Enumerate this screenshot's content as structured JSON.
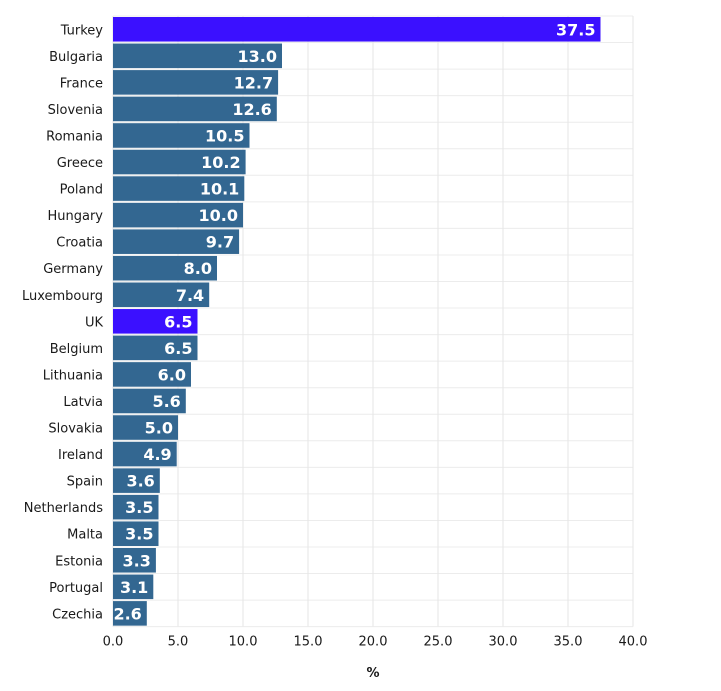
{
  "chart_data": {
    "type": "bar",
    "orientation": "horizontal",
    "title": "",
    "xlabel": "%",
    "ylabel": "",
    "xlim": [
      0,
      40
    ],
    "x_ticks": [
      "0.0",
      "5.0",
      "10.0",
      "15.0",
      "20.0",
      "25.0",
      "30.0",
      "35.0",
      "40.0"
    ],
    "grid": true,
    "categories": [
      "Turkey",
      "Bulgaria",
      "France",
      "Slovenia",
      "Romania",
      "Greece",
      "Poland",
      "Hungary",
      "Croatia",
      "Germany",
      "Luxembourg",
      "UK",
      "Belgium",
      "Lithuania",
      "Latvia",
      "Slovakia",
      "Ireland",
      "Spain",
      "Netherlands",
      "Malta",
      "Estonia",
      "Portugal",
      "Czechia"
    ],
    "values": [
      37.5,
      13.0,
      12.7,
      12.6,
      10.5,
      10.2,
      10.1,
      10.0,
      9.7,
      8.0,
      7.4,
      6.5,
      6.5,
      6.0,
      5.6,
      5.0,
      4.9,
      3.6,
      3.5,
      3.5,
      3.3,
      3.1,
      2.6
    ],
    "value_labels": [
      "37.5",
      "13.0",
      "12.7",
      "12.6",
      "10.5",
      "10.2",
      "10.1",
      "10.0",
      "9.7",
      "8.0",
      "7.4",
      "6.5",
      "6.5",
      "6.0",
      "5.6",
      "5.0",
      "4.9",
      "3.6",
      "3.5",
      "3.5",
      "3.3",
      "3.1",
      "2.6"
    ],
    "highlighted": [
      "Turkey",
      "UK"
    ],
    "colors": {
      "default": "#336791",
      "highlight": "#3b10ff"
    }
  }
}
